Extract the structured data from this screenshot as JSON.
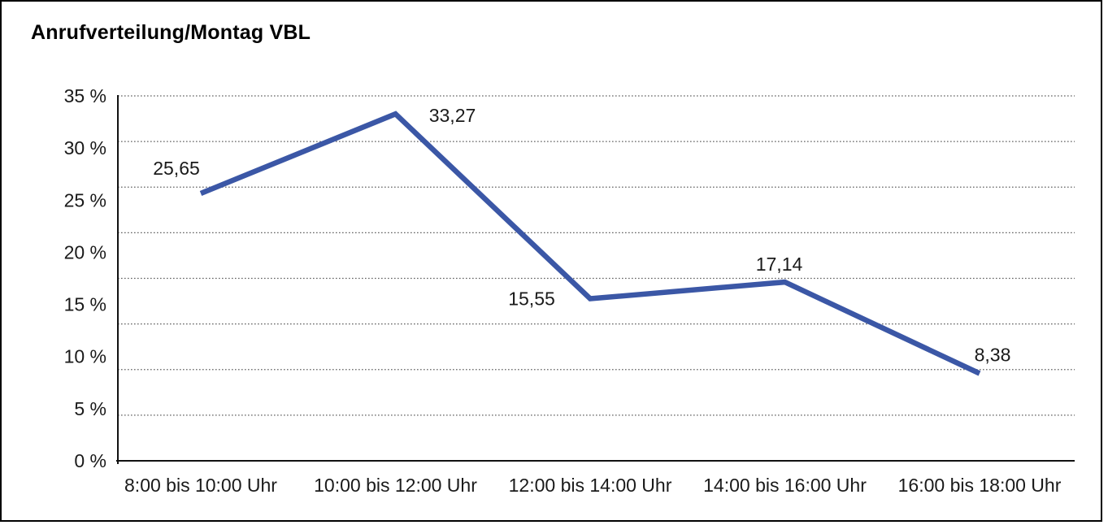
{
  "chart": {
    "title": "Anrufverteilung/Montag VBL"
  },
  "chart_data": {
    "type": "line",
    "title": "Anrufverteilung/Montag VBL",
    "categories": [
      "8:00 bis 10:00 Uhr",
      "10:00 bis 12:00 Uhr",
      "12:00 bis 14:00 Uhr",
      "14:00 bis 16:00 Uhr",
      "16:00 bis 18:00 Uhr"
    ],
    "series": [
      {
        "name": "Anrufverteilung Montag VBL",
        "values": [
          25.65,
          33.27,
          15.55,
          17.14,
          8.38
        ],
        "value_labels": [
          "25,65",
          "33,27",
          "15,55",
          "17,14",
          "8,38"
        ]
      }
    ],
    "xlabel": "",
    "ylabel": "",
    "ylim": [
      0,
      35
    ],
    "y_ticks": [
      {
        "value": 0,
        "label": "0 %"
      },
      {
        "value": 5,
        "label": "5 %"
      },
      {
        "value": 10,
        "label": "10 %"
      },
      {
        "value": 15,
        "label": "15 %"
      },
      {
        "value": 20,
        "label": "20 %"
      },
      {
        "value": 25,
        "label": "25 %"
      },
      {
        "value": 30,
        "label": "30 %"
      },
      {
        "value": 35,
        "label": "35 %"
      }
    ],
    "grid": "horizontal-dotted-8-divisions",
    "legend_position": "none",
    "colors": {
      "line": "#3B57A6",
      "axis": "#111111",
      "grid": "#606060",
      "text": "#1a1a1a",
      "background": "#ffffff",
      "frame_border": "#000000"
    }
  }
}
